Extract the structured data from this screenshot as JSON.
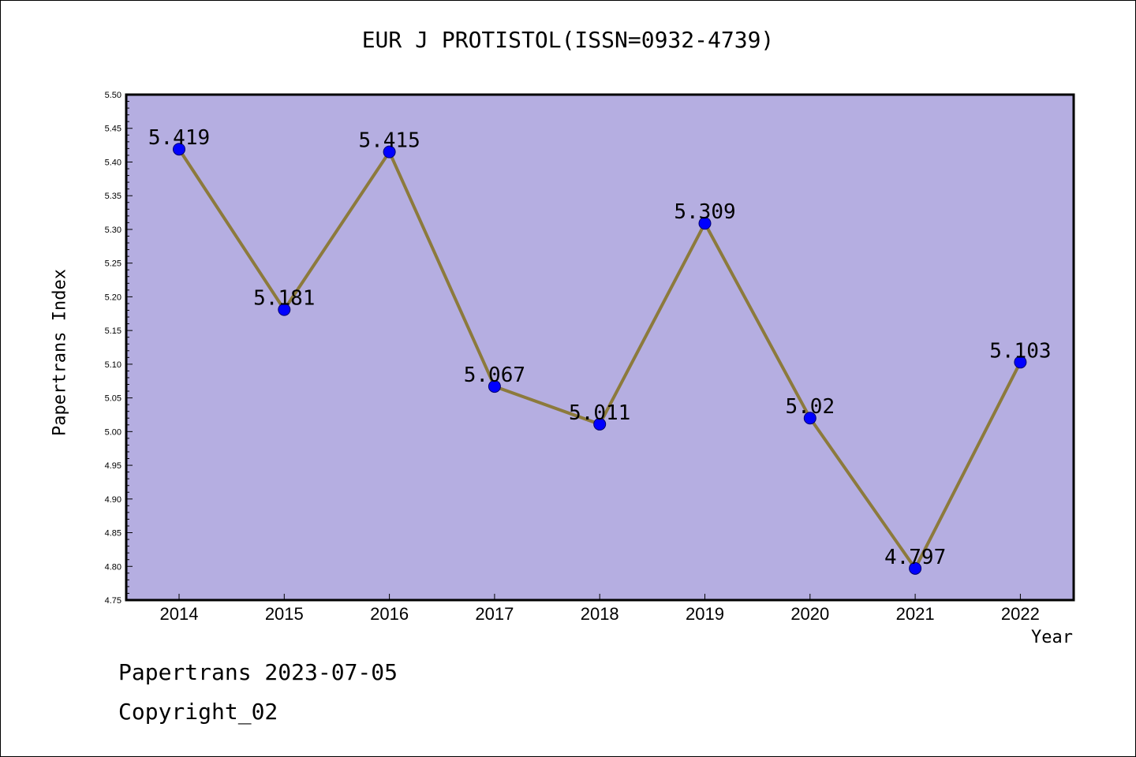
{
  "title": "EUR J PROTISTOL(ISSN=0932-4739)",
  "footer": {
    "line1": "Papertrans 2023-07-05",
    "line2": "Copyright_02"
  },
  "colors": {
    "plot_background": "#b5aee1",
    "line": "#8c7a3c",
    "marker": "#0000ff"
  },
  "chart_data": {
    "type": "line",
    "title": "EUR J PROTISTOL(ISSN=0932-4739)",
    "xlabel": "Year",
    "ylabel": "Papertrans Index",
    "categories": [
      "2014",
      "2015",
      "2016",
      "2017",
      "2018",
      "2019",
      "2020",
      "2021",
      "2022"
    ],
    "series": [
      {
        "values": [
          5.419,
          5.181,
          5.415,
          5.067,
          5.011,
          5.309,
          5.02,
          4.797,
          5.103
        ],
        "labels": [
          "5.419",
          "5.181",
          "5.415",
          "5.067",
          "5.011",
          "5.309",
          "5.02",
          "4.797",
          "5.103"
        ]
      }
    ],
    "ylim": [
      4.75,
      5.5
    ],
    "yticks": [
      "4.75",
      "4.80",
      "4.85",
      "4.90",
      "4.95",
      "5.00",
      "5.05",
      "5.10",
      "5.15",
      "5.20",
      "5.25",
      "5.30",
      "5.35",
      "5.40",
      "5.45",
      "5.50"
    ],
    "grid": false,
    "legend": "none"
  }
}
